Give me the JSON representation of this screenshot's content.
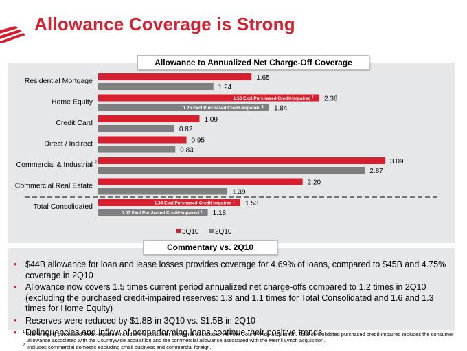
{
  "slide": {
    "title": "Allowance Coverage is Strong"
  },
  "colors": {
    "red": "#d6202f",
    "gray": "#7f7f7f",
    "panel": "#e6e7e9",
    "title_red": "#d6202f"
  },
  "chart_data": {
    "type": "bar",
    "orientation": "horizontal",
    "title": "Allowance to Annualized Net Charge-Off Coverage",
    "categories": [
      "Residential Mortgage",
      "Home Equity",
      "Credit Card",
      "Direct / Indirect",
      "Commercial & Industrial",
      "Commercial Real Estate",
      "Total Consolidated"
    ],
    "category_superscripts": [
      "",
      "",
      "",
      "",
      "2",
      "",
      ""
    ],
    "series": [
      {
        "name": "3Q10",
        "color": "#d6202f",
        "values": [
          1.65,
          2.38,
          1.09,
          0.95,
          3.09,
          2.2,
          1.53
        ],
        "labels": [
          "1.65",
          "2.38",
          "1.09",
          "0.95",
          "3.09",
          "2.20",
          "1.53"
        ]
      },
      {
        "name": "2Q10",
        "color": "#7f7f7f",
        "values": [
          1.24,
          1.84,
          0.82,
          0.83,
          2.87,
          1.39,
          1.18
        ],
        "labels": [
          "1.24",
          "1.84",
          "0.82",
          "0.83",
          "2.87",
          "1.39",
          "1.18"
        ]
      }
    ],
    "inner_labels": [
      {
        "category": 1,
        "series": 0,
        "text": "1.56  Excl Purchased Credit-Impaired",
        "sup": "1"
      },
      {
        "category": 1,
        "series": 1,
        "text": "1.25  Excl Purchased Credit-Impaired",
        "sup": "1"
      },
      {
        "category": 6,
        "series": 0,
        "text": "1.34  Excl Purchased-Credit Impaired",
        "sup": "1"
      },
      {
        "category": 6,
        "series": 1,
        "text": "1.05  Excl Purchased Credit-Impaired",
        "sup": "1"
      }
    ],
    "xlim": [
      0,
      3.4
    ],
    "legend": [
      "3Q10",
      "2Q10"
    ],
    "legend_position": "bottom",
    "separator_before_category": 6
  },
  "commentary": {
    "title": "Commentary vs. 2Q10",
    "bullet_glyph": "•",
    "bullets": [
      "$44B allowance for loan and lease losses provides coverage for 4.69% of loans, compared to $45B and 4.75% coverage in 2Q10",
      "Allowance now covers 1.5 times current period annualized net charge-offs compared to 1.2 times in 2Q10 (excluding the purchased credit-impaired reserves: 1.3 and 1.1 times for Total Consolidated and 1.6 and 1.3 times for Home Equity)",
      "Reserves were reduced by $1.8B in 3Q10 vs. $1.5B in 2Q10",
      "Delinquencies and inflow of nonperforming loans continue their positive trends"
    ]
  },
  "footnotes": [
    {
      "mark": "1",
      "text": "Home equity purchased credit-impaired includes the consumer allowance associated with the Countrywide acquisition. Total consolidated purchased credit-impaired includes the consumer allowance associated with the Countrywide acquisition and the commercial allowance associated with the Merrill Lynch acquisition."
    },
    {
      "mark": "2",
      "text": "Includes commercial domestic excluding small business and commercial foreign."
    }
  ]
}
